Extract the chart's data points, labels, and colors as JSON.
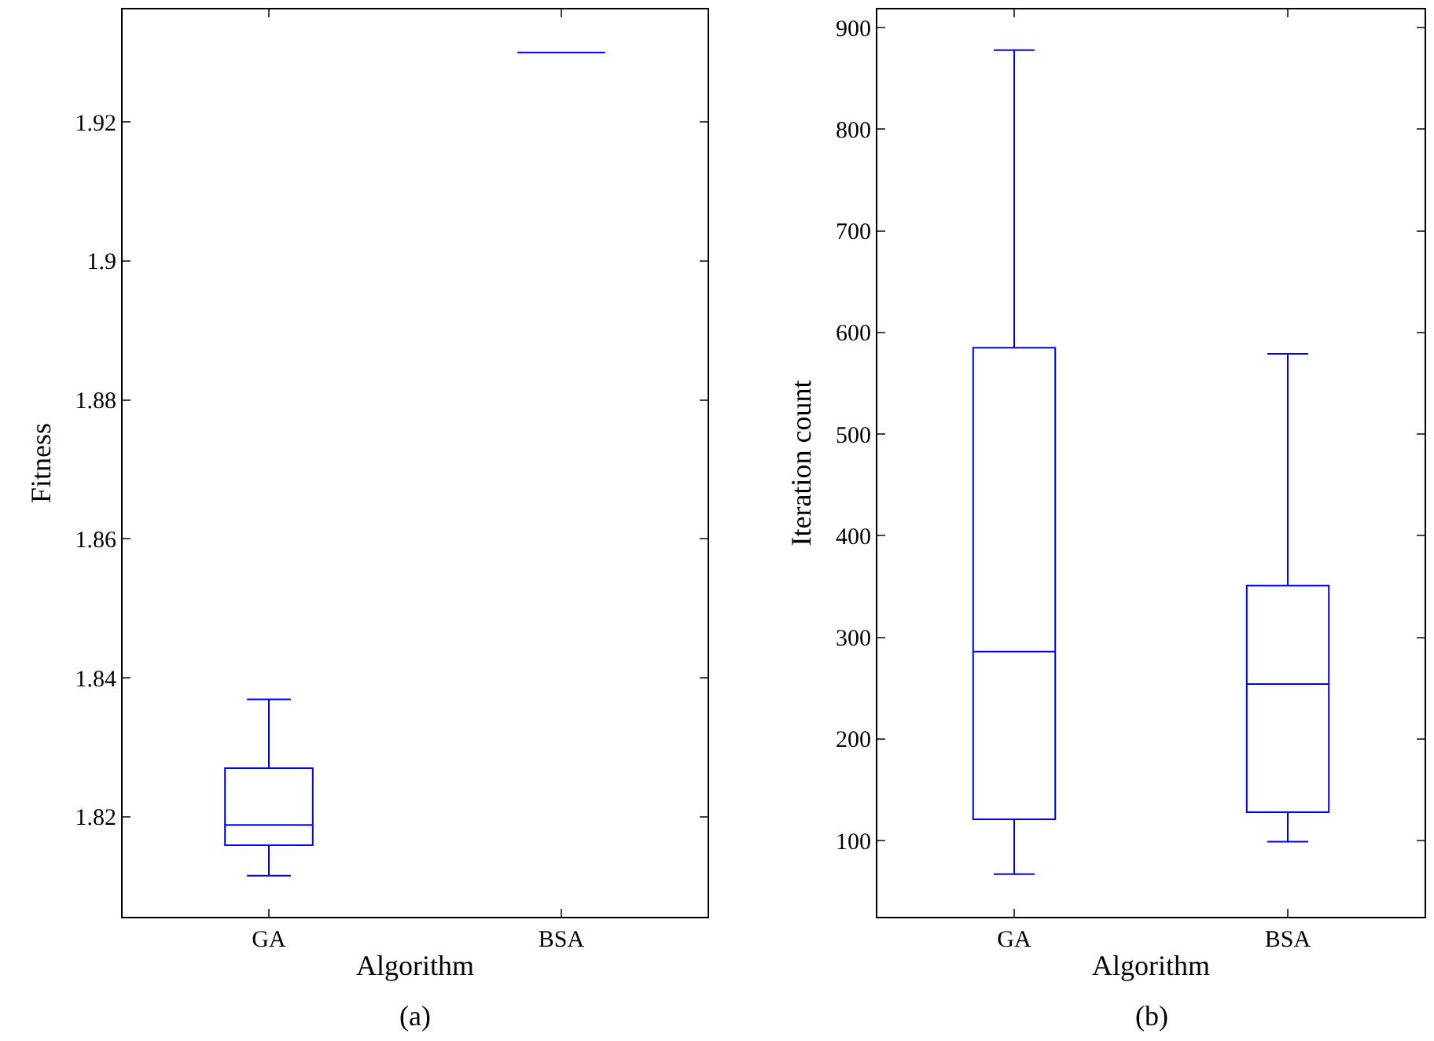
{
  "chart_data": [
    {
      "type": "box",
      "xlabel": "Algorithm",
      "ylabel": "Fitness",
      "annotations": [
        "(a)"
      ],
      "categories": [
        "GA",
        "BSA"
      ],
      "ylim": [
        1.8056,
        1.9362
      ],
      "yticks": [
        1.82,
        1.84,
        1.86,
        1.88,
        1.9,
        1.92
      ],
      "grid": false,
      "series": [
        {
          "color": "#0000ff",
          "boxes": [
            {
              "low": 1.8115,
              "q1": 1.8159,
              "median": 1.8188,
              "q3": 1.827,
              "high": 1.8369
            },
            {
              "low": 1.93,
              "q1": 1.93,
              "median": 1.93,
              "q3": 1.93,
              "high": 1.93
            }
          ]
        }
      ]
    },
    {
      "type": "box",
      "xlabel": "Algorithm",
      "ylabel": "Iteration count",
      "annotations": [
        "(b)"
      ],
      "categories": [
        "GA",
        "BSA"
      ],
      "ylim": [
        25,
        918
      ],
      "yticks": [
        100,
        200,
        300,
        400,
        500,
        600,
        700,
        800,
        900
      ],
      "grid": false,
      "series": [
        {
          "color": "#0000ff",
          "boxes": [
            {
              "low": 67,
              "q1": 121,
              "median": 286,
              "q3": 585,
              "high": 878
            },
            {
              "low": 99,
              "q1": 128,
              "median": 254,
              "q3": 351,
              "high": 579
            }
          ]
        }
      ]
    }
  ]
}
